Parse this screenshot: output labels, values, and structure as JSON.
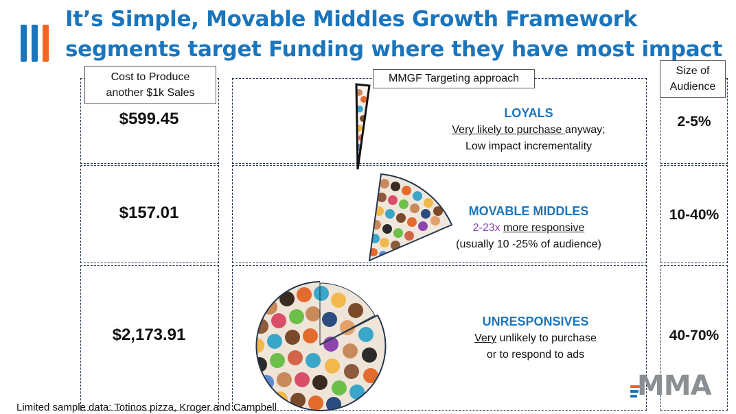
{
  "title": {
    "line1": "It’s Simple, Movable Middles Growth Framework",
    "line2": "segments target Funding where they have most impact"
  },
  "left_header": {
    "line1": "Cost to Produce",
    "line2": "another $1k Sales"
  },
  "center_header": "MMGF Targeting approach",
  "right_header": {
    "line1": "Size of",
    "line2": "Audience"
  },
  "rows": [
    {
      "cost": "$599.45",
      "name": "LOYALS",
      "desc1_u": "Very likely to purchase ",
      "desc1_rest": "anyway;",
      "desc2": "Low impact incrementality",
      "size": "2-5%"
    },
    {
      "cost": "$157.01",
      "name": "MOVABLE MIDDLES",
      "desc1_colored": "2-23x ",
      "desc1_u": "more responsive",
      "desc2": "(usually 10 -25% of audience)",
      "size": "10-40%"
    },
    {
      "cost": "$2,173.91",
      "name": "UNRESPONSIVES",
      "desc1_u": "Very",
      "desc1_rest": " unlikely to purchase",
      "desc2": "or to respond to ads",
      "size": "40-70%"
    }
  ],
  "footer": "Limited sample data:   Totinos pizza, Kroger and Campbell",
  "logo": {
    "wordmark": "MMA"
  },
  "colors": {
    "title_blue": "#1b75bc",
    "accent_orange": "#f26522",
    "purple": "#8e44ad",
    "border_navy": "#24364d",
    "logo_gray": "#8a8f94"
  },
  "icons": [
    "bars-logo-icon",
    "crowd-wedge-loyals",
    "crowd-wedge-movable-middles",
    "crowd-pie-unresponsives"
  ]
}
